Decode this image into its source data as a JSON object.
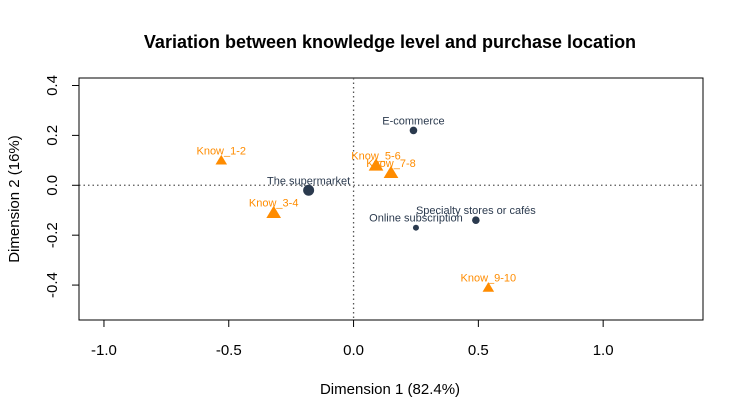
{
  "chart_data": {
    "type": "scatter",
    "title": "Variation between knowledge level and purchase location",
    "xlabel": "Dimension 1 (82.4%)",
    "ylabel": "Dimension 2 (16%)",
    "xlim": [
      -1.1,
      1.4
    ],
    "ylim": [
      -0.54,
      0.43
    ],
    "x_ticks": [
      -1.0,
      -0.5,
      0.0,
      0.5,
      1.0
    ],
    "x_tick_labels": [
      "-1.0",
      "-0.5",
      "0.0",
      "0.5",
      "1.0"
    ],
    "y_ticks": [
      -0.4,
      -0.2,
      0.0,
      0.2,
      0.4
    ],
    "y_tick_labels": [
      "-0.4",
      "-0.2",
      "0.0",
      "0.2",
      "0.4"
    ],
    "reference_lines": {
      "x": 0,
      "y": 0,
      "style": "dotted"
    },
    "series": [
      {
        "marker": "circle",
        "color": "#2b3a4e",
        "points": [
          {
            "label": "E-commerce",
            "x": 0.24,
            "y": 0.22,
            "size": "small"
          },
          {
            "label": "The supermarket",
            "x": -0.18,
            "y": -0.02,
            "size": "large"
          },
          {
            "label": "Specialty stores or cafés",
            "x": 0.49,
            "y": -0.14,
            "size": "small"
          },
          {
            "label": "Online subscription",
            "x": 0.25,
            "y": -0.17,
            "size": "tiny"
          }
        ]
      },
      {
        "marker": "triangle",
        "color": "#ff8c00",
        "points": [
          {
            "label": "Know_1-2",
            "x": -0.53,
            "y": 0.1,
            "size": "medium"
          },
          {
            "label": "Know_3-4",
            "x": -0.32,
            "y": -0.11,
            "size": "large"
          },
          {
            "label": "Know_5-6",
            "x": 0.09,
            "y": 0.08,
            "size": "large"
          },
          {
            "label": "Know_7-8",
            "x": 0.15,
            "y": 0.05,
            "size": "large"
          },
          {
            "label": "Know_9-10",
            "x": 0.54,
            "y": -0.41,
            "size": "medium"
          }
        ]
      }
    ]
  }
}
